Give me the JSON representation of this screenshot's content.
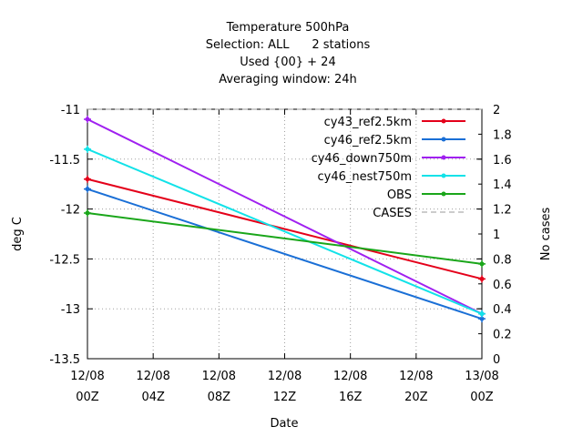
{
  "chart_data": {
    "type": "line",
    "title_lines": [
      "Temperature 500hPa",
      "Selection: ALL      2 stations",
      "Used {00} + 24",
      "Averaging window: 24h"
    ],
    "xlabel": "Date",
    "ylabel": "deg C",
    "y2label": "No cases",
    "x_ticks": [
      {
        "h": 0,
        "top": "12/08",
        "bottom": "00Z"
      },
      {
        "h": 4,
        "top": "12/08",
        "bottom": "04Z"
      },
      {
        "h": 8,
        "top": "12/08",
        "bottom": "08Z"
      },
      {
        "h": 12,
        "top": "12/08",
        "bottom": "12Z"
      },
      {
        "h": 16,
        "top": "12/08",
        "bottom": "16Z"
      },
      {
        "h": 20,
        "top": "12/08",
        "bottom": "20Z"
      },
      {
        "h": 24,
        "top": "13/08",
        "bottom": "00Z"
      }
    ],
    "xlim": [
      0,
      24
    ],
    "ylim": [
      -13.5,
      -11
    ],
    "y_ticks": [
      -11,
      -11.5,
      -12,
      -12.5,
      -13,
      -13.5
    ],
    "y2lim": [
      0,
      2
    ],
    "y2_ticks": [
      2,
      1.8,
      1.6,
      1.4,
      1.2,
      1,
      0.8,
      0.6,
      0.4,
      0.2,
      0
    ],
    "grid": true,
    "legend_position": "top-right",
    "series": [
      {
        "name": "cy43_ref2.5km",
        "color": "#e4001a",
        "x": [
          0,
          24
        ],
        "y": [
          -11.7,
          -12.7
        ]
      },
      {
        "name": "cy46_ref2.5km",
        "color": "#1a6fd6",
        "x": [
          0,
          24
        ],
        "y": [
          -11.8,
          -13.1
        ]
      },
      {
        "name": "cy46_down750m",
        "color": "#a020f0",
        "x": [
          0,
          24
        ],
        "y": [
          -11.1,
          -13.05
        ]
      },
      {
        "name": "cy46_nest750m",
        "color": "#12e2e8",
        "x": [
          0,
          24
        ],
        "y": [
          -11.4,
          -13.05
        ]
      },
      {
        "name": "OBS",
        "color": "#1aa61a",
        "x": [
          0,
          24
        ],
        "y": [
          -12.04,
          -12.55
        ]
      }
    ],
    "cases_series": {
      "name": "CASES",
      "color": "#9a9a9a",
      "x": [
        0,
        24
      ],
      "y2": [
        2,
        2
      ]
    }
  }
}
